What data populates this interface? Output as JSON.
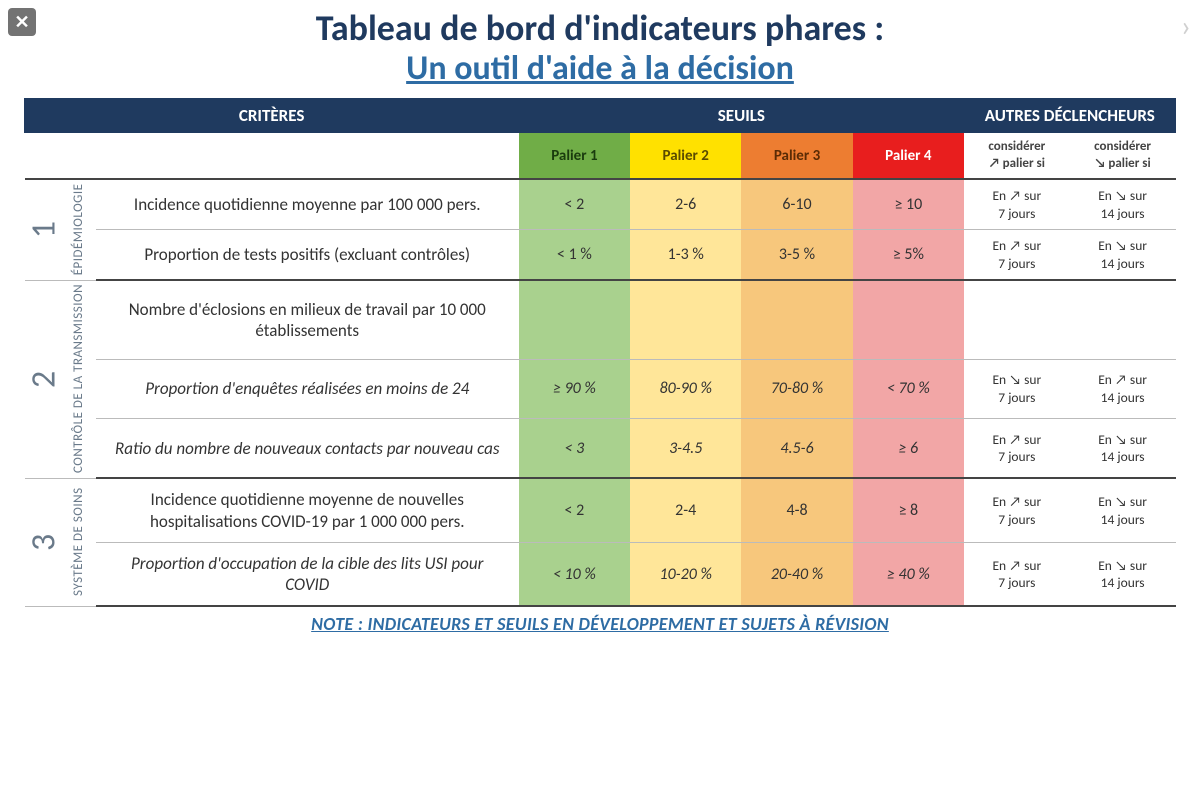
{
  "title": "Tableau de bord d'indicateurs phares :",
  "subtitle": "Un outil d'aide à la décision",
  "note": "NOTE : INDICATEURS ET SEUILS EN DÉVELOPPEMENT ET SUJETS À RÉVISION",
  "colors": {
    "title": "#1f3a5f",
    "subtitle": "#2e6ca4",
    "header_bg": "#1f3a5f",
    "palier1_header": "#70ad47",
    "palier2_header": "#ffe100",
    "palier3_header": "#ed7d31",
    "palier4_header": "#e81e1e",
    "palier1_body": "#a9d18e",
    "palier2_body": "#ffe699",
    "palier3_body": "#f7c77c",
    "palier4_body": "#f2a6a6",
    "group_text": "#6a7a8a"
  },
  "headers": {
    "criteres": "CRITÈRES",
    "seuils": "SEUILS",
    "autres": "AUTRES DÉCLENCHEURS",
    "paliers": [
      "Palier 1",
      "Palier 2",
      "Palier 3",
      "Palier 4"
    ],
    "trig_up_prefix": "considérer",
    "trig_up_mid": "↗ palier",
    "trig_up_suffix": "si",
    "trig_down_prefix": "considérer",
    "trig_down_mid": "↘ palier",
    "trig_down_suffix": "si"
  },
  "groups": [
    {
      "num": "1",
      "label": "ÉPIDÉMIOLOGIE",
      "rows": [
        {
          "criterion": "Incidence quotidienne moyenne par 100 000 pers.",
          "italic": false,
          "paliers": [
            "< 2",
            "2-6",
            "6-10",
            "≥ 10"
          ],
          "trig_up": "En ↗ sur 7 jours",
          "trig_down": "En ↘ sur 14 jours"
        },
        {
          "criterion": "Proportion de tests positifs (excluant contrôles)",
          "italic": false,
          "paliers": [
            "< 1 %",
            "1-3 %",
            "3-5 %",
            "≥ 5%"
          ],
          "trig_up": "En ↗ sur 7 jours",
          "trig_down": "En ↘ sur 14 jours"
        }
      ]
    },
    {
      "num": "2",
      "label": "CONTRÔLE DE LA TRANSMISSION",
      "rows": [
        {
          "criterion": "Nombre d'éclosions en milieux de travail par 10 000 établissements",
          "italic": false,
          "paliers": [
            "",
            "",
            "",
            ""
          ],
          "trig_up": "",
          "trig_down": ""
        },
        {
          "criterion": "Proportion d'enquêtes réalisées en moins de 24",
          "italic": true,
          "paliers": [
            "≥ 90 %",
            "80-90 %",
            "70-80 %",
            "< 70 %"
          ],
          "trig_up": "En ↘ sur 7 jours",
          "trig_down": "En ↗ sur 14 jours"
        },
        {
          "criterion": "Ratio du nombre de nouveaux contacts par nouveau cas",
          "italic": true,
          "paliers": [
            "< 3",
            "3-4.5",
            "4.5-6",
            "≥ 6"
          ],
          "trig_up": "En ↗ sur 7 jours",
          "trig_down": "En ↘ sur 14 jours"
        }
      ]
    },
    {
      "num": "3",
      "label": "SYSTÈME DE SOINS",
      "rows": [
        {
          "criterion": "Incidence quotidienne moyenne de nouvelles hospitalisations COVID-19 par 1 000 000 pers.",
          "italic": false,
          "paliers": [
            "< 2",
            "2-4",
            "4-8",
            "≥ 8"
          ],
          "trig_up": "En ↗ sur 7 jours",
          "trig_down": "En ↘ sur 14 jours"
        },
        {
          "criterion": "Proportion d'occupation de la cible des lits USI pour COVID",
          "italic": true,
          "paliers": [
            "< 10 %",
            "10-20 %",
            "20-40 %",
            "≥ 40 %"
          ],
          "trig_up": "En ↗ sur 7 jours",
          "trig_down": "En ↘ sur 14 jours"
        }
      ]
    }
  ]
}
